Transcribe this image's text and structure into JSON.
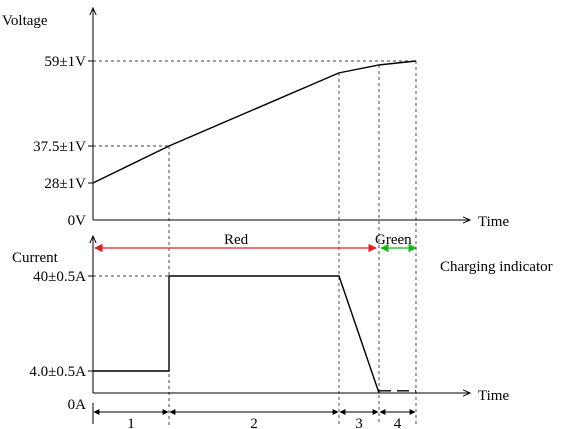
{
  "chart_data": [
    {
      "type": "line",
      "ylabel": "Voltage",
      "xlabel": "Time",
      "y_ticks": [
        "59±1V",
        "37.5±1V",
        "28±1V",
        "0V"
      ],
      "y_tick_values": [
        59,
        37.5,
        28,
        0
      ],
      "series": [
        {
          "x": [
            0,
            1,
            2,
            3,
            4
          ],
          "y": [
            28,
            37.5,
            56,
            58,
            59
          ]
        }
      ]
    },
    {
      "type": "line",
      "ylabel": "Current",
      "xlabel": "Time",
      "y_ticks": [
        "40±0.5A",
        "4.0±0.5A",
        "0A"
      ],
      "y_tick_values": [
        40,
        4.0,
        0
      ],
      "series": [
        {
          "x": [
            0,
            1,
            1,
            2,
            3
          ],
          "y": [
            4.0,
            4.0,
            40,
            40,
            0
          ]
        },
        {
          "x": [
            3,
            4
          ],
          "y": [
            0.4,
            0.4
          ],
          "style": "dashed"
        }
      ]
    }
  ],
  "indicator": {
    "label": "Charging indicator",
    "phases": [
      {
        "label": "Red",
        "color": "#e02020"
      },
      {
        "label": "Green",
        "color": "#18b818"
      }
    ]
  },
  "stages": [
    "1",
    "2",
    "3",
    "4"
  ]
}
